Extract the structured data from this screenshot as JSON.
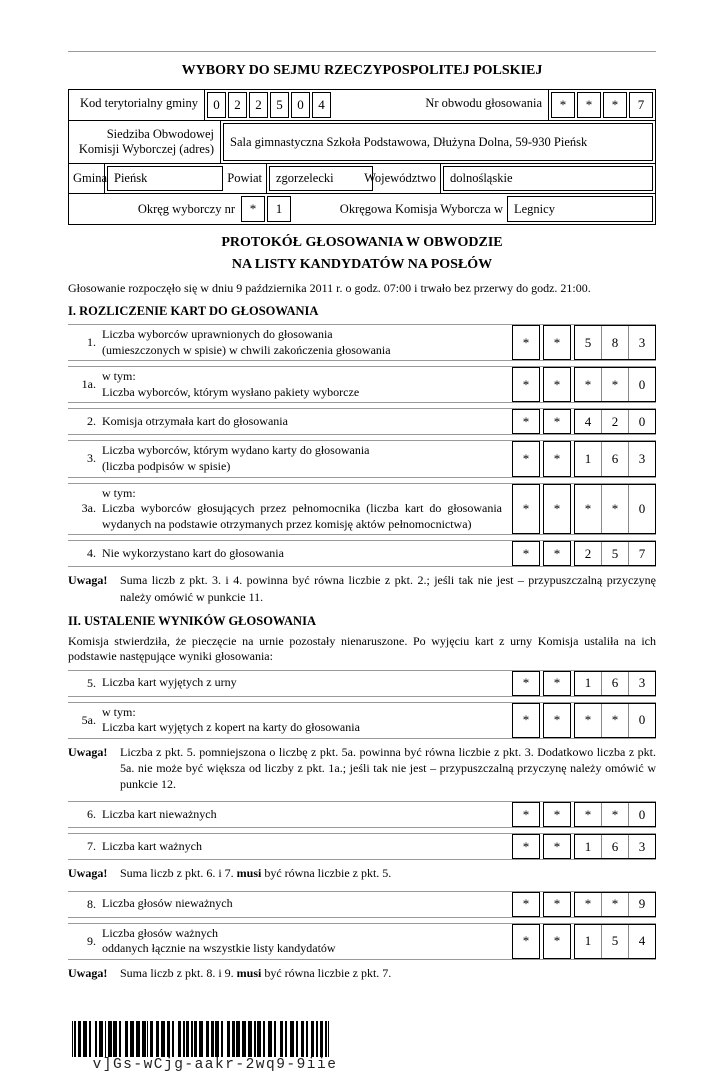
{
  "doc": {
    "title": "WYBORY DO SEJMU RZECZYPOSPOLITEJ POLSKIEJ",
    "subtitle1": "PROTOKÓŁ GŁOSOWANIA W OBWODZIE",
    "subtitle2": "NA LISTY KANDYDATÓW NA POSŁÓW",
    "intro": "Głosowanie rozpoczęło się w dniu 9 października 2011 r. o godz. 07:00 i trwało bez przerwy do godz. 21:00."
  },
  "header": {
    "kod_label": "Kod terytorialny gminy",
    "kod_cells": [
      "0",
      "2",
      "2",
      "5",
      "0",
      "4"
    ],
    "obwod_label": "Nr obwodu głosowania",
    "obwod_cells": [
      "*",
      "*",
      "*",
      "7"
    ],
    "siedziba_label": "Siedziba Obwodowej Komisji Wyborczej (adres)",
    "siedziba_value": "Sala gimnastyczna Szkoła Podstawowa, Dłużyna Dolna, 59-930 Pieńsk",
    "gmina_label": "Gmina",
    "gmina_value": "Pieńsk",
    "powiat_label": "Powiat",
    "powiat_value": "zgorzelecki",
    "woj_label": "Województwo",
    "woj_value": "dolnośląskie",
    "okreg_label": "Okręg wyborczy nr",
    "okreg_cells": [
      "*",
      "1"
    ],
    "okw_label": "Okręgowa Komisja Wyborcza w",
    "okw_value": "Legnicy"
  },
  "section1": {
    "heading": "I. ROZLICZENIE KART DO GŁOSOWANIA",
    "rows": [
      {
        "num": "1.",
        "line1": "Liczba wyborców uprawnionych do głosowania",
        "line2": "(umieszczonych w spisie) w chwili zakończenia głosowania",
        "cells": [
          "*",
          "*",
          "5",
          "8",
          "3"
        ]
      },
      {
        "num": "1a.",
        "line1": "w tym:",
        "line2": "Liczba wyborców, którym wysłano pakiety wyborcze",
        "cells": [
          "*",
          "*",
          "*",
          "*",
          "0"
        ]
      },
      {
        "num": "2.",
        "line1": "Komisja otrzymała kart do głosowania",
        "cells": [
          "*",
          "*",
          "4",
          "2",
          "0"
        ]
      },
      {
        "num": "3.",
        "line1": "Liczba wyborców, którym wydano karty do głosowania",
        "line2": "(liczba podpisów w spisie)",
        "cells": [
          "*",
          "*",
          "1",
          "6",
          "3"
        ]
      },
      {
        "num": "3a.",
        "line1": "w tym:",
        "line2": "Liczba wyborców głosujących przez pełnomocnika (liczba kart do głosowania wydanych na podstawie otrzymanych przez komisję aktów pełnomocnictwa)",
        "cells": [
          "*",
          "*",
          "*",
          "*",
          "0"
        ]
      },
      {
        "num": "4.",
        "line1": "Nie wykorzystano kart do głosowania",
        "cells": [
          "*",
          "*",
          "2",
          "5",
          "7"
        ]
      }
    ]
  },
  "note1": {
    "label": "Uwaga!",
    "text": "Suma liczb z pkt. 3. i 4. powinna być równa liczbie z pkt. 2.; jeśli tak nie jest – przypuszczalną przyczynę należy omówić w punkcie 11."
  },
  "section2": {
    "heading": "II. USTALENIE WYNIKÓW GŁOSOWANIA",
    "intro": "Komisja stwierdziła, że pieczęcie na urnie pozostały nienaruszone. Po wyjęciu kart z urny Komisja ustaliła na ich podstawie następujące wyniki głosowania:",
    "rows": [
      {
        "num": "5.",
        "line1": "Liczba kart wyjętych z urny",
        "cells": [
          "*",
          "*",
          "1",
          "6",
          "3"
        ]
      },
      {
        "num": "5a.",
        "line1": "w tym:",
        "line2": "Liczba kart wyjętych z kopert na karty do głosowania",
        "cells": [
          "*",
          "*",
          "*",
          "*",
          "0"
        ]
      },
      {
        "num": "6.",
        "line1": "Liczba kart nieważnych",
        "cells": [
          "*",
          "*",
          "*",
          "*",
          "0"
        ]
      },
      {
        "num": "7.",
        "line1": "Liczba kart ważnych",
        "cells": [
          "*",
          "*",
          "1",
          "6",
          "3"
        ]
      },
      {
        "num": "8.",
        "line1": "Liczba głosów nieważnych",
        "cells": [
          "*",
          "*",
          "*",
          "*",
          "9"
        ]
      },
      {
        "num": "9.",
        "line1": "Liczba głosów ważnych",
        "line2": "oddanych łącznie na wszystkie listy kandydatów",
        "cells": [
          "*",
          "*",
          "1",
          "5",
          "4"
        ]
      }
    ]
  },
  "note2": {
    "label": "Uwaga!",
    "text": "Liczba z pkt. 5. pomniejszona o liczbę z pkt. 5a. powinna być równa liczbie z pkt. 3. Dodatkowo liczba z pkt. 5a. nie może być większa od liczby z pkt. 1a.; jeśli tak nie jest – przypuszczalną przyczynę należy omówić w punkcie 12."
  },
  "note3": {
    "label": "Uwaga!",
    "pre": "Suma liczb z pkt. 6. i 7. ",
    "bold": "musi",
    "post": " być równa liczbie z pkt. 5."
  },
  "note4": {
    "label": "Uwaga!",
    "pre": "Suma liczb z pkt. 8. i 9. ",
    "bold": "musi",
    "post": " być równa liczbie z pkt. 7."
  },
  "barcode": {
    "value": "v]Gs-wCjg-aakr-2wq9-9iie"
  }
}
